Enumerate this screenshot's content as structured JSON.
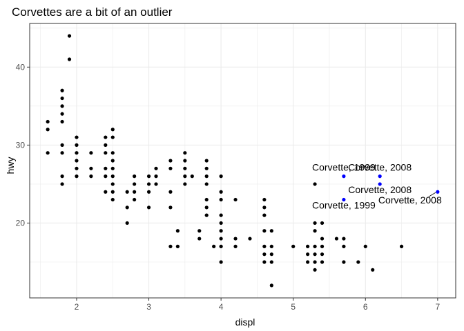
{
  "chart_data": {
    "type": "scatter",
    "title": "Corvettes are a bit of an outlier",
    "xlabel": "displ",
    "ylabel": "hwy",
    "xlim": [
      1.35,
      7.25
    ],
    "ylim": [
      10.4,
      45.6
    ],
    "x_ticks": [
      2,
      3,
      4,
      5,
      6,
      7
    ],
    "y_ticks": [
      20,
      30,
      40
    ],
    "grid": true,
    "colors": {
      "points": "#000000",
      "highlight": "#0000ff",
      "panel_border": "#333333",
      "grid": "#ebebeb"
    },
    "series": [
      {
        "role": "all-cars",
        "points": [
          [
            1.6,
            33
          ],
          [
            1.6,
            32
          ],
          [
            1.6,
            29
          ],
          [
            1.8,
            37
          ],
          [
            1.8,
            36
          ],
          [
            1.8,
            35
          ],
          [
            1.8,
            34
          ],
          [
            1.8,
            33
          ],
          [
            1.8,
            30
          ],
          [
            1.8,
            29
          ],
          [
            1.8,
            26
          ],
          [
            1.8,
            25
          ],
          [
            1.9,
            44
          ],
          [
            1.9,
            41
          ],
          [
            2.0,
            31
          ],
          [
            2.0,
            30
          ],
          [
            2.0,
            29
          ],
          [
            2.0,
            28
          ],
          [
            2.0,
            27
          ],
          [
            2.0,
            26
          ],
          [
            2.2,
            29
          ],
          [
            2.2,
            27
          ],
          [
            2.2,
            26
          ],
          [
            2.4,
            31
          ],
          [
            2.4,
            30
          ],
          [
            2.4,
            29
          ],
          [
            2.4,
            27
          ],
          [
            2.4,
            26
          ],
          [
            2.4,
            24
          ],
          [
            2.5,
            32
          ],
          [
            2.5,
            31
          ],
          [
            2.5,
            29
          ],
          [
            2.5,
            28
          ],
          [
            2.5,
            27
          ],
          [
            2.5,
            26
          ],
          [
            2.5,
            25
          ],
          [
            2.5,
            24
          ],
          [
            2.5,
            23
          ],
          [
            2.7,
            24
          ],
          [
            2.7,
            22
          ],
          [
            2.7,
            20
          ],
          [
            2.8,
            26
          ],
          [
            2.8,
            25
          ],
          [
            2.8,
            24
          ],
          [
            2.8,
            23
          ],
          [
            3.0,
            26
          ],
          [
            3.0,
            25
          ],
          [
            3.0,
            24
          ],
          [
            3.0,
            22
          ],
          [
            3.1,
            27
          ],
          [
            3.1,
            26
          ],
          [
            3.1,
            25
          ],
          [
            3.3,
            28
          ],
          [
            3.3,
            27
          ],
          [
            3.3,
            24
          ],
          [
            3.3,
            22
          ],
          [
            3.3,
            17
          ],
          [
            3.4,
            19
          ],
          [
            3.4,
            17
          ],
          [
            3.5,
            29
          ],
          [
            3.5,
            28
          ],
          [
            3.5,
            27
          ],
          [
            3.5,
            26
          ],
          [
            3.5,
            25
          ],
          [
            3.6,
            26
          ],
          [
            3.7,
            19
          ],
          [
            3.7,
            18
          ],
          [
            3.8,
            28
          ],
          [
            3.8,
            27
          ],
          [
            3.8,
            26
          ],
          [
            3.8,
            25
          ],
          [
            3.8,
            23
          ],
          [
            3.8,
            22
          ],
          [
            3.8,
            21
          ],
          [
            3.9,
            17
          ],
          [
            4.0,
            26
          ],
          [
            4.0,
            24
          ],
          [
            4.0,
            23
          ],
          [
            4.0,
            21
          ],
          [
            4.0,
            20
          ],
          [
            4.0,
            19
          ],
          [
            4.0,
            18
          ],
          [
            4.0,
            17
          ],
          [
            4.0,
            15
          ],
          [
            4.2,
            23
          ],
          [
            4.2,
            18
          ],
          [
            4.2,
            17
          ],
          [
            4.4,
            18
          ],
          [
            4.6,
            23
          ],
          [
            4.6,
            22
          ],
          [
            4.6,
            21
          ],
          [
            4.6,
            19
          ],
          [
            4.6,
            17
          ],
          [
            4.6,
            16
          ],
          [
            4.6,
            15
          ],
          [
            4.7,
            19
          ],
          [
            4.7,
            17
          ],
          [
            4.7,
            16
          ],
          [
            4.7,
            15
          ],
          [
            4.7,
            12
          ],
          [
            5.0,
            17
          ],
          [
            5.2,
            17
          ],
          [
            5.2,
            16
          ],
          [
            5.2,
            15
          ],
          [
            5.3,
            25
          ],
          [
            5.3,
            20
          ],
          [
            5.3,
            19
          ],
          [
            5.3,
            17
          ],
          [
            5.3,
            16
          ],
          [
            5.3,
            15
          ],
          [
            5.3,
            14
          ],
          [
            5.4,
            20
          ],
          [
            5.4,
            18
          ],
          [
            5.4,
            17
          ],
          [
            5.4,
            16
          ],
          [
            5.4,
            15
          ],
          [
            5.6,
            18
          ],
          [
            5.7,
            18
          ],
          [
            5.7,
            17
          ],
          [
            5.7,
            15
          ],
          [
            5.9,
            15
          ],
          [
            6.0,
            17
          ],
          [
            6.1,
            14
          ],
          [
            6.5,
            17
          ]
        ]
      },
      {
        "role": "corvettes",
        "points": [
          [
            5.7,
            26
          ],
          [
            5.7,
            23
          ],
          [
            6.2,
            26
          ],
          [
            6.2,
            25
          ],
          [
            7.0,
            24
          ]
        ]
      }
    ],
    "annotations": [
      {
        "text": "Corvette, 1999",
        "x": 5.7,
        "y": 26,
        "side": "above"
      },
      {
        "text": "Corvette, 1999",
        "x": 5.7,
        "y": 23,
        "side": "below"
      },
      {
        "text": "Corvette, 2008",
        "x": 6.2,
        "y": 26,
        "side": "above"
      },
      {
        "text": "Corvette, 2008",
        "x": 6.2,
        "y": 25,
        "side": "below"
      },
      {
        "text": "Corvette, 2008",
        "x": 7.0,
        "y": 24,
        "side": "below-left"
      }
    ]
  }
}
